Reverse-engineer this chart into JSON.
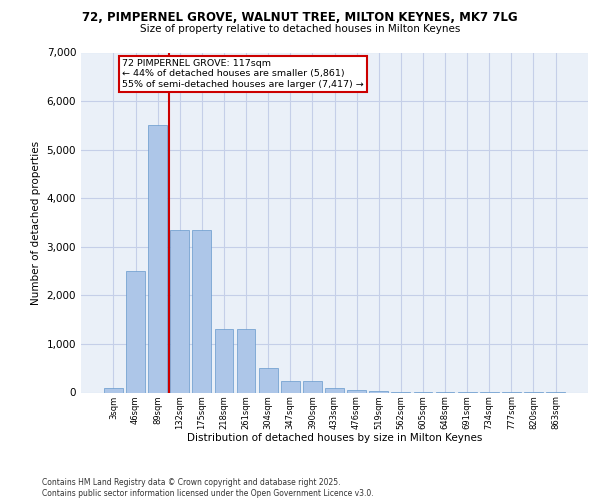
{
  "title_line1": "72, PIMPERNEL GROVE, WALNUT TREE, MILTON KEYNES, MK7 7LG",
  "title_line2": "Size of property relative to detached houses in Milton Keynes",
  "xlabel": "Distribution of detached houses by size in Milton Keynes",
  "ylabel": "Number of detached properties",
  "categories": [
    "3sqm",
    "46sqm",
    "89sqm",
    "132sqm",
    "175sqm",
    "218sqm",
    "261sqm",
    "304sqm",
    "347sqm",
    "390sqm",
    "433sqm",
    "476sqm",
    "519sqm",
    "562sqm",
    "605sqm",
    "648sqm",
    "691sqm",
    "734sqm",
    "777sqm",
    "820sqm",
    "863sqm"
  ],
  "values": [
    100,
    2500,
    5500,
    3350,
    3350,
    1300,
    1300,
    500,
    230,
    230,
    100,
    60,
    30,
    10,
    5,
    3,
    2,
    2,
    1,
    1,
    1
  ],
  "bar_color": "#adc6e8",
  "bar_edge_color": "#6699cc",
  "grid_color": "#c5cfe8",
  "bg_color": "#eaf0f8",
  "vline_color": "#cc0000",
  "vline_pos": 2.5,
  "annotation_text": "72 PIMPERNEL GROVE: 117sqm\n← 44% of detached houses are smaller (5,861)\n55% of semi-detached houses are larger (7,417) →",
  "annotation_box_edgecolor": "#cc0000",
  "footer_line1": "Contains HM Land Registry data © Crown copyright and database right 2025.",
  "footer_line2": "Contains public sector information licensed under the Open Government Licence v3.0.",
  "ylim": [
    0,
    7000
  ],
  "yticks": [
    0,
    1000,
    2000,
    3000,
    4000,
    5000,
    6000,
    7000
  ]
}
